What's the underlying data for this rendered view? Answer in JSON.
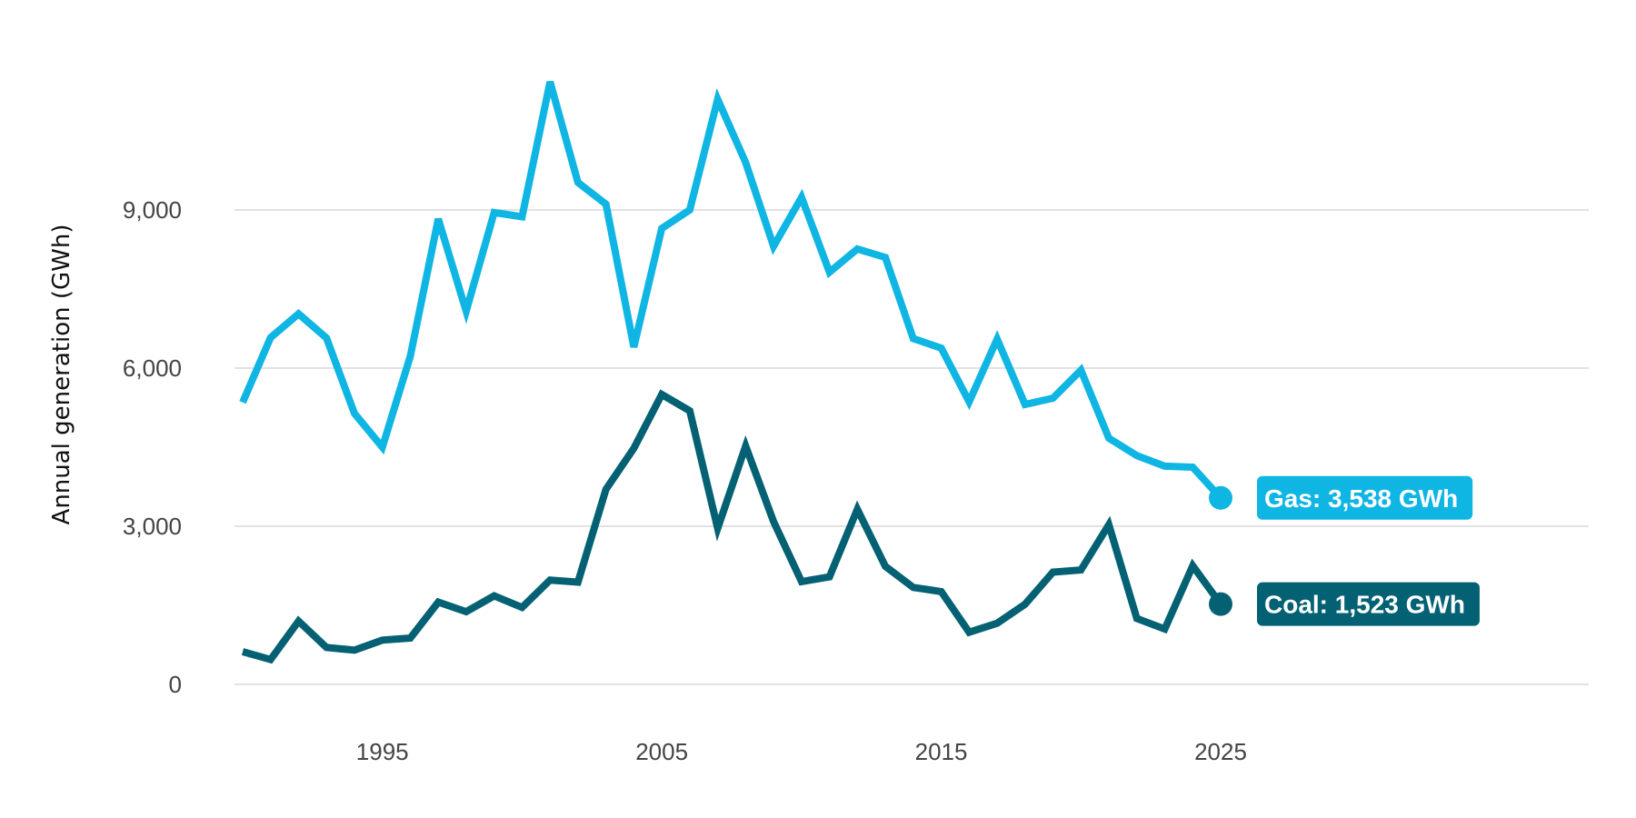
{
  "chart_data": {
    "type": "line",
    "title": "",
    "xlabel": "",
    "ylabel": "Annual generation (GWh)",
    "xlim": [
      1990,
      2038.5
    ],
    "ylim": [
      0,
      12000
    ],
    "x_ticks": [
      1995,
      2005,
      2015,
      2025
    ],
    "x_tick_labels": [
      "1995",
      "2005",
      "2015",
      "2025"
    ],
    "y_ticks": [
      0,
      3000,
      6000,
      9000
    ],
    "y_tick_labels": [
      "0",
      "3,000",
      "6,000",
      "9,000"
    ],
    "grid": "horizontal",
    "legend": "none",
    "x": [
      1990,
      1991,
      1992,
      1993,
      1994,
      1995,
      1996,
      1997,
      1998,
      1999,
      2000,
      2001,
      2002,
      2003,
      2004,
      2005,
      2006,
      2007,
      2008,
      2009,
      2010,
      2011,
      2012,
      2013,
      2014,
      2015,
      2016,
      2017,
      2018,
      2019,
      2020,
      2021,
      2022,
      2023,
      2024,
      2025
    ],
    "series": [
      {
        "name": "Gas",
        "color": "#0fb5e3",
        "values": [
          5350,
          6580,
          7030,
          6570,
          5140,
          4500,
          6230,
          8830,
          7080,
          8950,
          8870,
          11430,
          9520,
          9110,
          6400,
          8650,
          9000,
          11100,
          9900,
          8310,
          9240,
          7820,
          8260,
          8100,
          6560,
          6380,
          5360,
          6550,
          5310,
          5430,
          5960,
          4670,
          4340,
          4140,
          4120,
          3538
        ],
        "end_label": "Gas: 3,538 GWh"
      },
      {
        "name": "Coal",
        "color": "#046173",
        "values": [
          620,
          470,
          1200,
          700,
          650,
          840,
          880,
          1560,
          1380,
          1680,
          1460,
          1980,
          1940,
          3700,
          4480,
          5500,
          5190,
          2960,
          4520,
          3090,
          1950,
          2040,
          3320,
          2240,
          1840,
          1760,
          990,
          1160,
          1520,
          2130,
          2170,
          3030,
          1250,
          1050,
          2250,
          1523
        ],
        "end_label": "Coal: 1,523 GWh"
      }
    ]
  }
}
